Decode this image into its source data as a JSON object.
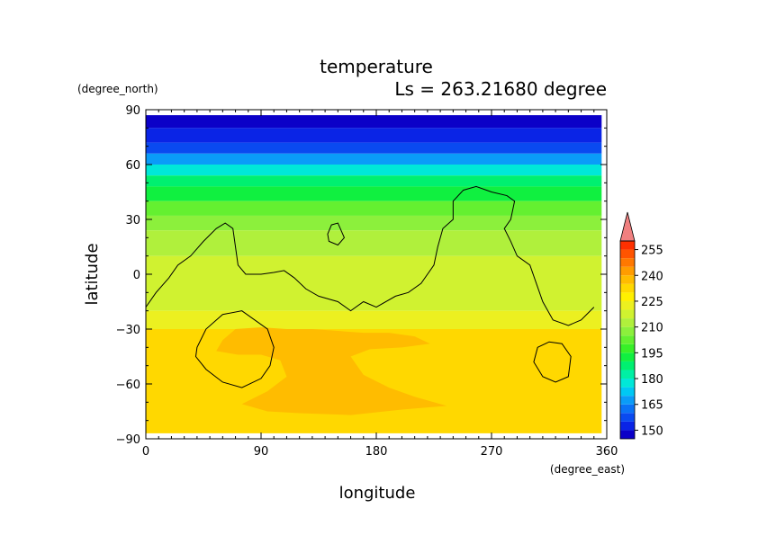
{
  "chart_data": {
    "type": "heatmap",
    "title": "temperature",
    "subtitle": "Ls = 263.21680 degree",
    "xlabel": "longitude",
    "ylabel": "latitude",
    "x_unit": "(degree_east)",
    "y_unit": "(degree_north)",
    "xlim": [
      0,
      360
    ],
    "ylim": [
      -90,
      90
    ],
    "x_ticks": [
      0,
      90,
      180,
      270,
      360
    ],
    "y_ticks": [
      -90,
      -60,
      -30,
      0,
      30,
      60,
      90
    ],
    "data_extent": {
      "lon": [
        0,
        356
      ],
      "lat": [
        -87,
        87
      ]
    },
    "colorbar": {
      "ticks": [
        150,
        165,
        180,
        195,
        210,
        225,
        240,
        255
      ],
      "levels": [
        145,
        150,
        155,
        160,
        165,
        170,
        175,
        180,
        185,
        190,
        195,
        200,
        205,
        210,
        215,
        220,
        225,
        230,
        235,
        240,
        245,
        250,
        255,
        260
      ],
      "colors": [
        "#0b00c8",
        "#0a24e6",
        "#0a4af0",
        "#0a72f6",
        "#0a9cf8",
        "#00c8f4",
        "#00e8d8",
        "#00f0a4",
        "#00f070",
        "#10f040",
        "#38f028",
        "#64f030",
        "#8cf03c",
        "#b0f03c",
        "#d0f230",
        "#ecf020",
        "#fff000",
        "#ffd800",
        "#ffbc00",
        "#ff9c00",
        "#ff7800",
        "#ff5400",
        "#ff3000",
        "#f01010"
      ],
      "overflow_color": "#f08080"
    },
    "field_bands": [
      {
        "lat": [
          80,
          87
        ],
        "value": 147
      },
      {
        "lat": [
          72,
          80
        ],
        "value": 150
      },
      {
        "lat": [
          66,
          72
        ],
        "value": 157
      },
      {
        "lat": [
          60,
          66
        ],
        "value": 167
      },
      {
        "lat": [
          54,
          60
        ],
        "value": 177
      },
      {
        "lat": [
          48,
          54
        ],
        "value": 185
      },
      {
        "lat": [
          40,
          48
        ],
        "value": 192
      },
      {
        "lat": [
          32,
          40
        ],
        "value": 200
      },
      {
        "lat": [
          24,
          32
        ],
        "value": 206
      },
      {
        "lat": [
          10,
          24
        ],
        "value": 212
      },
      {
        "lat": [
          -20,
          10
        ],
        "value": 217
      },
      {
        "lat": [
          -30,
          -20
        ],
        "value": 222
      },
      {
        "lat": [
          -87,
          -30
        ],
        "value": 230
      }
    ],
    "warm_region": {
      "value": 238,
      "outline": [
        [
          55,
          -42
        ],
        [
          60,
          -36
        ],
        [
          70,
          -30
        ],
        [
          90,
          -29
        ],
        [
          110,
          -30
        ],
        [
          130,
          -30
        ],
        [
          150,
          -31
        ],
        [
          170,
          -32
        ],
        [
          190,
          -32
        ],
        [
          210,
          -34
        ],
        [
          222,
          -38
        ],
        [
          200,
          -40
        ],
        [
          175,
          -41
        ],
        [
          160,
          -45
        ],
        [
          170,
          -55
        ],
        [
          190,
          -62
        ],
        [
          210,
          -67
        ],
        [
          235,
          -72
        ],
        [
          200,
          -74
        ],
        [
          160,
          -77
        ],
        [
          120,
          -76
        ],
        [
          95,
          -75
        ],
        [
          75,
          -71
        ],
        [
          95,
          -64
        ],
        [
          110,
          -56
        ],
        [
          105,
          -47
        ],
        [
          90,
          -44
        ],
        [
          72,
          -44
        ]
      ]
    },
    "contours": [
      [
        [
          0,
          -18
        ],
        [
          8,
          -10
        ],
        [
          18,
          -2
        ],
        [
          25,
          5
        ],
        [
          35,
          10
        ],
        [
          45,
          18
        ],
        [
          55,
          25
        ],
        [
          62,
          28
        ],
        [
          68,
          25
        ],
        [
          70,
          15
        ],
        [
          72,
          5
        ],
        [
          78,
          0
        ],
        [
          90,
          0
        ],
        [
          100,
          1
        ],
        [
          108,
          2
        ],
        [
          116,
          -2
        ],
        [
          125,
          -8
        ],
        [
          135,
          -12
        ],
        [
          150,
          -15
        ],
        [
          160,
          -20
        ],
        [
          170,
          -15
        ],
        [
          180,
          -18
        ],
        [
          195,
          -12
        ],
        [
          205,
          -10
        ],
        [
          215,
          -5
        ],
        [
          225,
          5
        ],
        [
          228,
          15
        ],
        [
          232,
          25
        ],
        [
          240,
          30
        ],
        [
          240,
          40
        ],
        [
          248,
          46
        ],
        [
          258,
          48
        ],
        [
          270,
          45
        ],
        [
          282,
          43
        ],
        [
          288,
          40
        ],
        [
          285,
          30
        ],
        [
          280,
          25
        ],
        [
          285,
          18
        ],
        [
          290,
          10
        ],
        [
          300,
          5
        ],
        [
          305,
          -5
        ],
        [
          310,
          -15
        ],
        [
          318,
          -25
        ],
        [
          330,
          -28
        ],
        [
          340,
          -25
        ],
        [
          350,
          -18
        ]
      ],
      [
        [
          142,
          22
        ],
        [
          145,
          27
        ],
        [
          150,
          28
        ],
        [
          155,
          20
        ],
        [
          150,
          16
        ],
        [
          143,
          18
        ]
      ],
      [
        [
          40,
          -40
        ],
        [
          47,
          -30
        ],
        [
          60,
          -22
        ],
        [
          75,
          -20
        ],
        [
          85,
          -25
        ],
        [
          95,
          -30
        ],
        [
          100,
          -40
        ],
        [
          97,
          -50
        ],
        [
          90,
          -57
        ],
        [
          75,
          -62
        ],
        [
          60,
          -59
        ],
        [
          47,
          -52
        ],
        [
          39,
          -45
        ]
      ],
      [
        [
          306,
          -40
        ],
        [
          315,
          -37
        ],
        [
          325,
          -38
        ],
        [
          332,
          -45
        ],
        [
          330,
          -56
        ],
        [
          320,
          -59
        ],
        [
          310,
          -56
        ],
        [
          303,
          -48
        ]
      ]
    ]
  }
}
